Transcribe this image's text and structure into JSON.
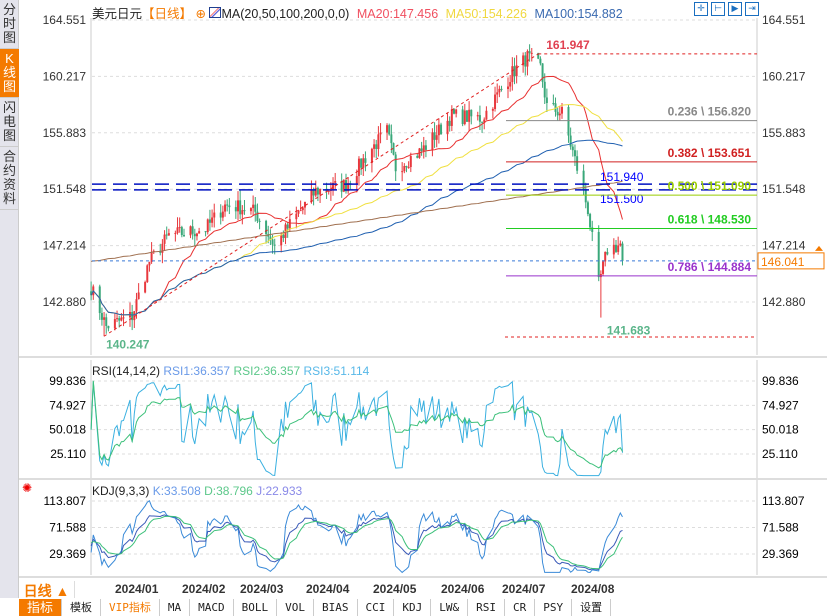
{
  "sidebar": {
    "items": [
      {
        "label": "分时图",
        "active": false
      },
      {
        "label": "K线图",
        "active": true
      },
      {
        "label": "闪电图",
        "active": false
      },
      {
        "label": "合约资料",
        "active": false
      }
    ]
  },
  "header": {
    "symbol": "美元日元",
    "period_tag": "【日线】",
    "ma_label": "MA(20,50,100,200,0,0)",
    "ma20": "MA20:147.456",
    "ma50": "MA50:154.226",
    "ma100": "MA100:154.882"
  },
  "colors": {
    "up": "#e8383d",
    "down": "#3aa87a",
    "ma20": "#e83030",
    "ma50": "#f0e040",
    "ma100": "#1f5fb0",
    "ma200": "#a07050",
    "accent": "#f47a00"
  },
  "toolbar": {
    "icons": [
      "crosshair-icon",
      "zoom-range-icon",
      "play-range-icon",
      "exit-icon"
    ]
  },
  "price_axis": {
    "ticks": [
      "164.551",
      "160.217",
      "155.883",
      "151.548",
      "147.214",
      "142.880"
    ],
    "tick_values": [
      164.551,
      160.217,
      155.883,
      151.548,
      147.214,
      142.88
    ],
    "current_price": "146.041",
    "current_value": 146.041
  },
  "annotations": {
    "high": "161.947",
    "high_value": 161.947,
    "low": "141.683",
    "low_value": 141.683,
    "start_low": "140.247",
    "start_low_value": 140.247,
    "blue_lines": [
      {
        "label": "151.940",
        "value": 151.94
      },
      {
        "label": "151.500",
        "value": 151.5
      }
    ]
  },
  "fibonacci": [
    {
      "label": "0.236 \\ 156.820",
      "value": 156.82,
      "color": "#888888"
    },
    {
      "label": "0.382 \\ 153.651",
      "value": 153.651,
      "color": "#d02020"
    },
    {
      "label": "0.500 \\ 151.090",
      "value": 151.09,
      "color": "#99cc00"
    },
    {
      "label": "0.618 \\ 148.530",
      "value": 148.53,
      "color": "#22cc22"
    },
    {
      "label": "0.786 \\ 144.884",
      "value": 144.884,
      "color": "#9933cc"
    }
  ],
  "rsi": {
    "label": "RSI(14,14,2)",
    "rsi1": "RSI1:36.357",
    "rsi2": "RSI2:36.357",
    "rsi3": "RSI3:51.114",
    "ticks": [
      "99.836",
      "74.927",
      "50.018",
      "25.110"
    ]
  },
  "kdj": {
    "label": "KDJ(9,3,3)",
    "k": "K:33.508",
    "d": "D:38.796",
    "j": "J:22.933",
    "ticks": [
      "113.807",
      "71.588",
      "29.369"
    ]
  },
  "period": "日线 ▲",
  "dates": [
    "2024/01",
    "2024/02",
    "2024/03",
    "2024/04",
    "2024/05",
    "2024/06",
    "2024/07",
    "2024/08"
  ],
  "tabs": [
    "指标",
    "模板",
    "VIP指标",
    "MA",
    "MACD",
    "BOLL",
    "VOL",
    "BIAS",
    "CCI",
    "KDJ",
    "LW&",
    "RSI",
    "CR",
    "PSY",
    "设置"
  ],
  "chart_data": {
    "type": "candlestick",
    "key_closes": [
      [
        "2023-12-14",
        144.0
      ],
      [
        "2023-12-21",
        141.0
      ],
      [
        "2024-01-02",
        141.8
      ],
      [
        "2024-01-10",
        146.0
      ],
      [
        "2024-01-19",
        148.0
      ],
      [
        "2024-02-05",
        148.5
      ],
      [
        "2024-02-14",
        150.3
      ],
      [
        "2024-02-20",
        150.2
      ],
      [
        "2024-02-28",
        149.8
      ],
      [
        "2024-03-08",
        147.2
      ],
      [
        "2024-03-18",
        149.5
      ],
      [
        "2024-03-27",
        151.4
      ],
      [
        "2024-04-10",
        151.9
      ],
      [
        "2024-04-22",
        154.7
      ],
      [
        "2024-04-29",
        156.0
      ],
      [
        "2024-05-03",
        153.2
      ],
      [
        "2024-05-15",
        154.5
      ],
      [
        "2024-05-29",
        157.2
      ],
      [
        "2024-06-12",
        157.0
      ],
      [
        "2024-06-26",
        160.5
      ],
      [
        "2024-07-03",
        161.7
      ],
      [
        "2024-07-09",
        160.9
      ],
      [
        "2024-07-12",
        157.9
      ],
      [
        "2024-07-19",
        157.4
      ],
      [
        "2024-07-25",
        153.8
      ],
      [
        "2024-07-31",
        150.0
      ],
      [
        "2024-08-05",
        144.2
      ],
      [
        "2024-08-09",
        146.9
      ],
      [
        "2024-08-15",
        147.3
      ],
      [
        "2024-08-16",
        146.04
      ]
    ]
  }
}
